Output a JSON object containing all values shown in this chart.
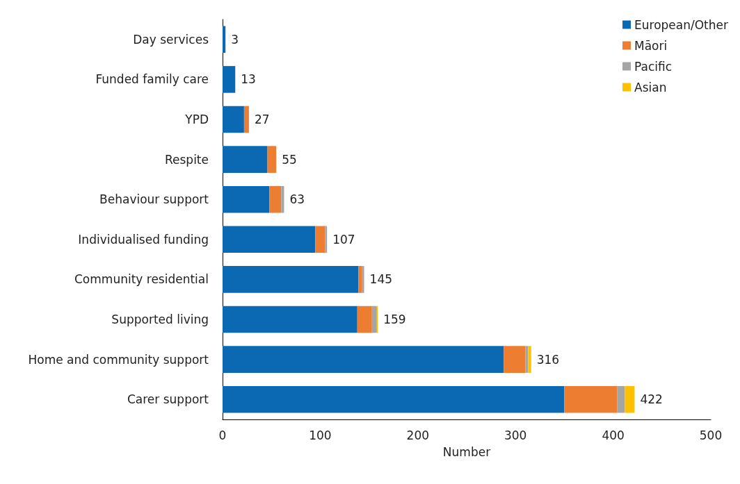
{
  "chart_data": {
    "type": "bar",
    "orientation": "horizontal",
    "stacked": true,
    "xlabel": "Number",
    "categories": [
      "Day services",
      "Funded family care",
      "YPD",
      "Respite",
      "Behaviour support",
      "Individualised funding",
      "Community residential",
      "Supported living",
      "Home and community support",
      "Carer support"
    ],
    "series": [
      {
        "name": "European/Other",
        "color": "#0b69b4",
        "values": [
          3,
          13,
          22,
          46,
          48,
          95,
          139,
          138,
          288,
          350
        ]
      },
      {
        "name": "Māori",
        "color": "#ed7d31",
        "values": [
          0,
          0,
          5,
          9,
          12,
          10,
          4,
          15,
          22,
          54
        ]
      },
      {
        "name": "Pacific",
        "color": "#a5a5a5",
        "values": [
          0,
          0,
          0,
          0,
          3,
          2,
          2,
          5,
          3,
          8
        ]
      },
      {
        "name": "Asian",
        "color": "#ffc000",
        "values": [
          0,
          0,
          0,
          0,
          0,
          0,
          0,
          1,
          3,
          10
        ]
      }
    ],
    "totals": [
      "3",
      "13",
      "27",
      "55",
      "63",
      "107",
      "145",
      "159",
      "316",
      "422"
    ],
    "xlim": [
      0,
      500
    ],
    "xticks": [
      0,
      100,
      200,
      300,
      400,
      500
    ],
    "grid": false,
    "legend": "top right"
  }
}
